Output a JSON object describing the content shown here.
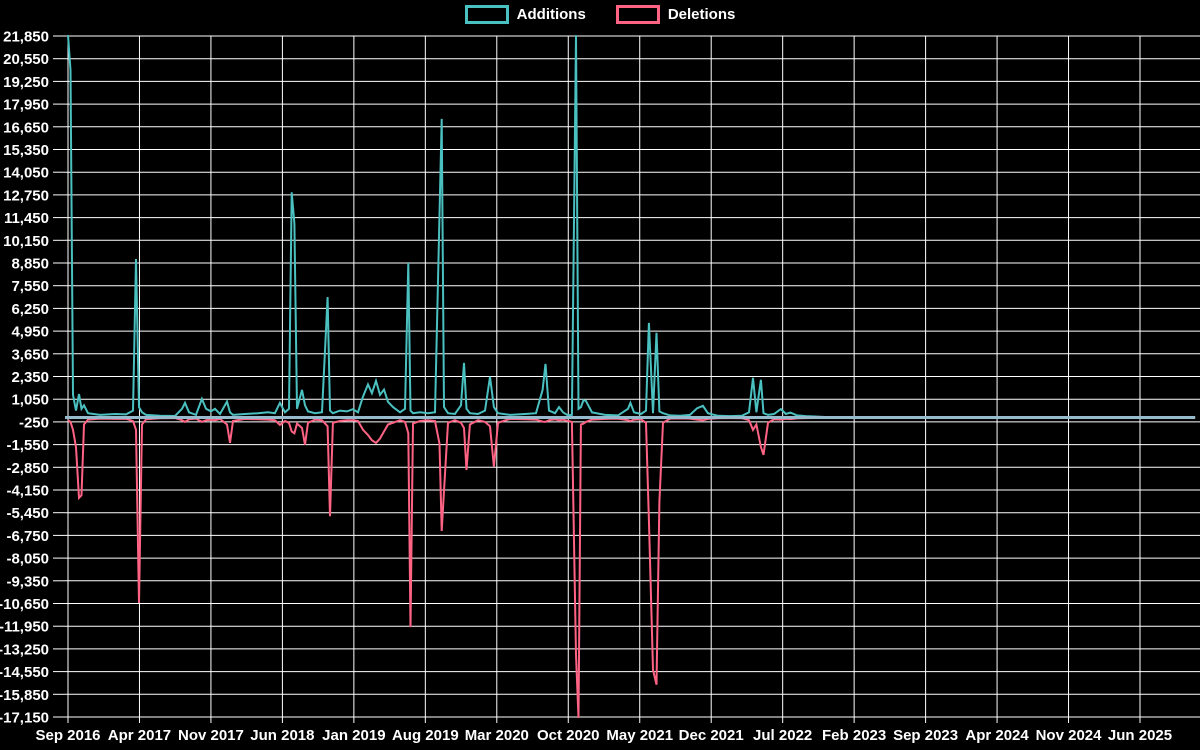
{
  "legend": {
    "additions_label": "Additions",
    "deletions_label": "Deletions"
  },
  "colors": {
    "background": "#000000",
    "grid": "#ffffff",
    "tick_text": "#ffffff",
    "additions": "#4bc0c0",
    "deletions": "#ff6384",
    "zero_line": "#97bbcd"
  },
  "chart_data": {
    "type": "line",
    "x_unit": "months since Sep 2016 (weekly additions/deletions frequency)",
    "x_axis": {
      "tick_labels": [
        "Sep 2016",
        "Apr 2017",
        "Nov 2017",
        "Jun 2018",
        "Jan 2019",
        "Aug 2019",
        "Mar 2020",
        "Oct 2020",
        "May 2021",
        "Dec 2021",
        "Jul 2022",
        "Feb 2023",
        "Sep 2023",
        "Apr 2024",
        "Nov 2024",
        "Jun 2025"
      ],
      "tick_interval_months": 7,
      "t_start": 0,
      "t_max": 110.4
    },
    "y_axis": {
      "min": -17150,
      "max": 21850,
      "step": 1300,
      "tick_labels": [
        "21,850",
        "20,550",
        "19,250",
        "17,950",
        "16,650",
        "15,350",
        "14,050",
        "12,750",
        "11,450",
        "10,150",
        "8,850",
        "7,550",
        "6,250",
        "4,950",
        "3,650",
        "2,350",
        "1,050",
        "-250",
        "-1,550",
        "-2,850",
        "-4,150",
        "-5,450",
        "-6,750",
        "-8,050",
        "-9,350",
        "-10,650",
        "-11,950",
        "-13,250",
        "-14,550",
        "-15,850",
        "-17,150"
      ]
    },
    "grid": true,
    "legend_position": "top",
    "series": [
      {
        "name": "Additions",
        "color": "#4bc0c0"
      },
      {
        "name": "Deletions",
        "color": "#ff6384"
      }
    ],
    "points_format": [
      "t_months",
      "additions",
      "deletions"
    ],
    "points": [
      [
        0,
        21900,
        -150
      ],
      [
        0.24,
        19900,
        -250
      ],
      [
        0.49,
        1300,
        -700
      ],
      [
        0.78,
        400,
        -1700
      ],
      [
        1.08,
        1350,
        -4600
      ],
      [
        1.32,
        500,
        -4450
      ],
      [
        1.57,
        700,
        -400
      ],
      [
        1.96,
        250,
        -120
      ],
      [
        3.13,
        150,
        -60
      ],
      [
        4.6,
        200,
        -80
      ],
      [
        5.68,
        180,
        -70
      ],
      [
        6.37,
        400,
        -200
      ],
      [
        6.66,
        9080,
        -700
      ],
      [
        6.95,
        600,
        -10620
      ],
      [
        7.25,
        300,
        -400
      ],
      [
        7.64,
        150,
        -100
      ],
      [
        9.01,
        100,
        -40
      ],
      [
        10.48,
        90,
        -35
      ],
      [
        11.17,
        500,
        -150
      ],
      [
        11.46,
        840,
        -250
      ],
      [
        11.85,
        300,
        -100
      ],
      [
        12.54,
        150,
        -60
      ],
      [
        13.12,
        1070,
        -250
      ],
      [
        13.52,
        500,
        -150
      ],
      [
        14.01,
        350,
        -120
      ],
      [
        14.4,
        500,
        -150
      ],
      [
        14.89,
        200,
        -80
      ],
      [
        15.57,
        910,
        -400
      ],
      [
        15.87,
        300,
        -1450
      ],
      [
        16.16,
        150,
        -200
      ],
      [
        17.34,
        200,
        -80
      ],
      [
        18.61,
        250,
        -100
      ],
      [
        19.59,
        300,
        -120
      ],
      [
        20.27,
        250,
        -150
      ],
      [
        20.76,
        840,
        -420
      ],
      [
        21.25,
        300,
        -200
      ],
      [
        21.65,
        500,
        -300
      ],
      [
        21.91,
        12900,
        -800
      ],
      [
        22.18,
        11100,
        -900
      ],
      [
        22.43,
        500,
        -350
      ],
      [
        22.92,
        1580,
        -600
      ],
      [
        23.21,
        700,
        -1560
      ],
      [
        23.51,
        350,
        -300
      ],
      [
        24.19,
        250,
        -120
      ],
      [
        24.88,
        300,
        -150
      ],
      [
        25.43,
        6900,
        -500
      ],
      [
        25.66,
        400,
        -5650
      ],
      [
        25.95,
        250,
        -300
      ],
      [
        26.64,
        400,
        -200
      ],
      [
        27.33,
        350,
        -150
      ],
      [
        27.91,
        480,
        -150
      ],
      [
        28.4,
        300,
        -200
      ],
      [
        28.89,
        1200,
        -700
      ],
      [
        29.38,
        1900,
        -1000
      ],
      [
        29.77,
        1400,
        -1300
      ],
      [
        30.17,
        2100,
        -1450
      ],
      [
        30.56,
        1300,
        -1200
      ],
      [
        30.95,
        1600,
        -800
      ],
      [
        31.34,
        900,
        -400
      ],
      [
        31.83,
        600,
        -300
      ],
      [
        32.52,
        300,
        -150
      ],
      [
        33.01,
        500,
        -250
      ],
      [
        33.33,
        8850,
        -900
      ],
      [
        33.55,
        400,
        -12000
      ],
      [
        33.79,
        250,
        -350
      ],
      [
        34.48,
        300,
        -200
      ],
      [
        35.26,
        250,
        -150
      ],
      [
        35.95,
        300,
        -200
      ],
      [
        36.39,
        11600,
        -1500
      ],
      [
        36.6,
        17100,
        -6500
      ],
      [
        36.83,
        600,
        -4200
      ],
      [
        37.22,
        250,
        -300
      ],
      [
        37.9,
        200,
        -150
      ],
      [
        38.49,
        700,
        -300
      ],
      [
        38.79,
        3130,
        -600
      ],
      [
        39.03,
        500,
        -3000
      ],
      [
        39.37,
        250,
        -400
      ],
      [
        40.16,
        200,
        -150
      ],
      [
        40.84,
        400,
        -250
      ],
      [
        41.33,
        2330,
        -500
      ],
      [
        41.72,
        600,
        -2820
      ],
      [
        42.12,
        250,
        -300
      ],
      [
        43.29,
        150,
        -80
      ],
      [
        44.76,
        200,
        -100
      ],
      [
        45.84,
        250,
        -120
      ],
      [
        46.49,
        1580,
        -230
      ],
      [
        46.77,
        3070,
        -250
      ],
      [
        47.11,
        400,
        -150
      ],
      [
        47.7,
        250,
        -100
      ],
      [
        48.09,
        600,
        -150
      ],
      [
        48.48,
        300,
        -120
      ],
      [
        48.97,
        120,
        -200
      ],
      [
        49.36,
        150,
        -250
      ],
      [
        49.76,
        21900,
        -13600
      ],
      [
        50,
        500,
        -17200
      ],
      [
        50.24,
        600,
        -400
      ],
      [
        50.49,
        1000,
        -350
      ],
      [
        50.73,
        950,
        -250
      ],
      [
        51.32,
        300,
        -120
      ],
      [
        52.6,
        150,
        -80
      ],
      [
        53.87,
        120,
        -60
      ],
      [
        54.85,
        500,
        -150
      ],
      [
        55.09,
        840,
        -200
      ],
      [
        55.44,
        300,
        -120
      ],
      [
        56.12,
        200,
        -100
      ],
      [
        56.61,
        400,
        -300
      ],
      [
        56.9,
        5420,
        -5860
      ],
      [
        57.3,
        250,
        -14450
      ],
      [
        57.64,
        4850,
        -15300
      ],
      [
        57.93,
        350,
        -4800
      ],
      [
        58.28,
        250,
        -300
      ],
      [
        58.96,
        120,
        -60
      ],
      [
        59.94,
        100,
        -50
      ],
      [
        60.92,
        150,
        -60
      ],
      [
        61.61,
        530,
        -120
      ],
      [
        62.19,
        670,
        -150
      ],
      [
        62.68,
        250,
        -80
      ],
      [
        63.66,
        100,
        -40
      ],
      [
        64.84,
        80,
        -35
      ],
      [
        66.01,
        100,
        -40
      ],
      [
        66.7,
        300,
        -150
      ],
      [
        67.09,
        2270,
        -710
      ],
      [
        67.43,
        300,
        -400
      ],
      [
        67.87,
        2160,
        -1680
      ],
      [
        68.12,
        250,
        -2140
      ],
      [
        68.56,
        150,
        -300
      ],
      [
        69.15,
        200,
        -100
      ],
      [
        69.83,
        490,
        -120
      ],
      [
        70.32,
        200,
        -70
      ],
      [
        70.76,
        280,
        -90
      ],
      [
        71.4,
        120,
        -50
      ],
      [
        72.28,
        80,
        -30
      ],
      [
        73.16,
        60,
        -25
      ],
      [
        74.63,
        20,
        -10
      ],
      [
        76.59,
        0,
        0
      ],
      [
        110.4,
        0,
        0
      ]
    ]
  }
}
